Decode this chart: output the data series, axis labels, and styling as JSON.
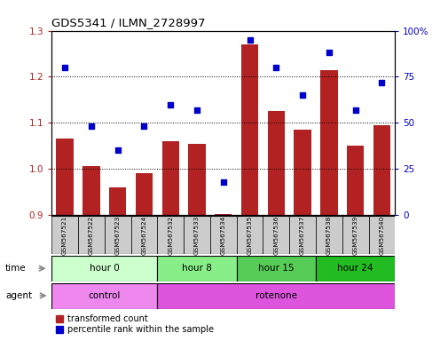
{
  "title": "GDS5341 / ILMN_2728997",
  "samples": [
    "GSM567521",
    "GSM567522",
    "GSM567523",
    "GSM567524",
    "GSM567532",
    "GSM567533",
    "GSM567534",
    "GSM567535",
    "GSM567536",
    "GSM567537",
    "GSM567538",
    "GSM567539",
    "GSM567540"
  ],
  "bar_values": [
    1.065,
    1.005,
    0.96,
    0.99,
    1.06,
    1.055,
    0.902,
    1.27,
    1.125,
    1.085,
    1.215,
    1.05,
    1.095
  ],
  "scatter_values": [
    80,
    48,
    35,
    48,
    60,
    57,
    18,
    95,
    80,
    65,
    88,
    57,
    72
  ],
  "ylim_left": [
    0.9,
    1.3
  ],
  "ylim_right": [
    0,
    100
  ],
  "yticks_left": [
    0.9,
    1.0,
    1.1,
    1.2,
    1.3
  ],
  "yticks_right": [
    0,
    25,
    50,
    75,
    100
  ],
  "ytick_labels_right": [
    "0",
    "25",
    "50",
    "75",
    "100%"
  ],
  "bar_color": "#B22222",
  "scatter_color": "#0000CC",
  "grid_color": "#000000",
  "bg_color": "#ffffff",
  "time_groups": [
    {
      "label": "hour 0",
      "start": 0,
      "end": 3,
      "color": "#ccffcc"
    },
    {
      "label": "hour 8",
      "start": 4,
      "end": 6,
      "color": "#88ee88"
    },
    {
      "label": "hour 15",
      "start": 7,
      "end": 9,
      "color": "#55cc55"
    },
    {
      "label": "hour 24",
      "start": 10,
      "end": 12,
      "color": "#22bb22"
    }
  ],
  "agent_groups": [
    {
      "label": "control",
      "start": 0,
      "end": 3,
      "color": "#ee88ee"
    },
    {
      "label": "rotenone",
      "start": 4,
      "end": 12,
      "color": "#dd55dd"
    }
  ],
  "legend_red": "transformed count",
  "legend_blue": "percentile rank within the sample",
  "xlabel_time": "time",
  "xlabel_agent": "agent",
  "sample_bg_color": "#cccccc"
}
